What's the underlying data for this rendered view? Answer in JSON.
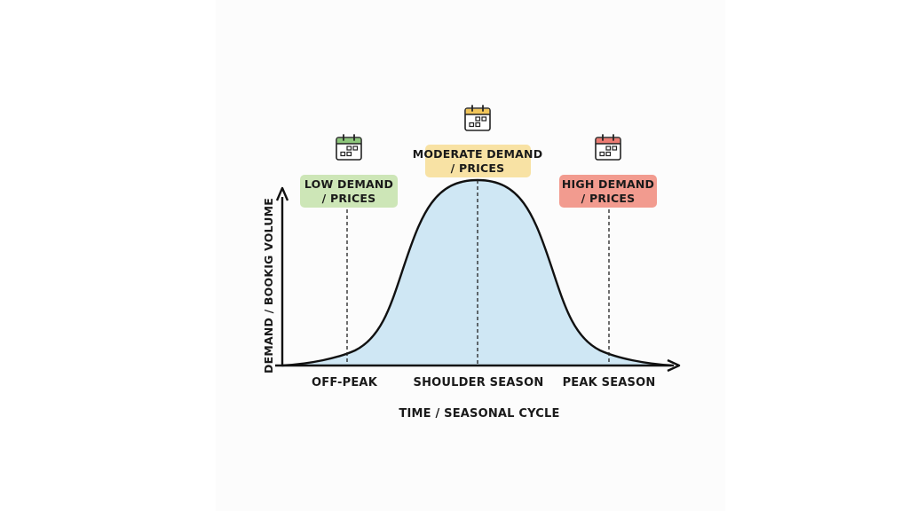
{
  "colors": {
    "curve_fill": "#cfe7f4",
    "curve_stroke": "#111111",
    "axis": "#111111",
    "low": "#cde6b7",
    "moderate": "#f8e2a4",
    "high": "#f29b8f",
    "calendar_low_top": "#8dc77b",
    "calendar_mod_top": "#f1c55a",
    "calendar_high_top": "#ec7b72"
  },
  "axes": {
    "x_label": "TIME / SEASONAL CYCLE",
    "y_label": "DEMAND / BOOKIG VOLUME"
  },
  "ticks": [
    "OFF-PEAK",
    "SHOULDER SEASON",
    "PEAK SEASON"
  ],
  "callouts": [
    {
      "line1": "LOW DEMAND",
      "line2": "/ PRICES",
      "icon": "calendar-icon",
      "color_key": "low"
    },
    {
      "line1": "MODERATE DEMAND",
      "line2": "/ PRICES",
      "icon": "calendar-icon",
      "color_key": "moderate"
    },
    {
      "line1": "HIGH DEMAND",
      "line2": "/ PRICES",
      "icon": "calendar-icon",
      "color_key": "high"
    }
  ],
  "chart_data": {
    "type": "area",
    "shape": "bell-curve",
    "categories": [
      "OFF-PEAK",
      "SHOULDER SEASON",
      "PEAK SEASON"
    ],
    "xlabel": "TIME / SEASONAL CYCLE",
    "ylabel": "DEMAND / BOOKIG VOLUME"
  }
}
